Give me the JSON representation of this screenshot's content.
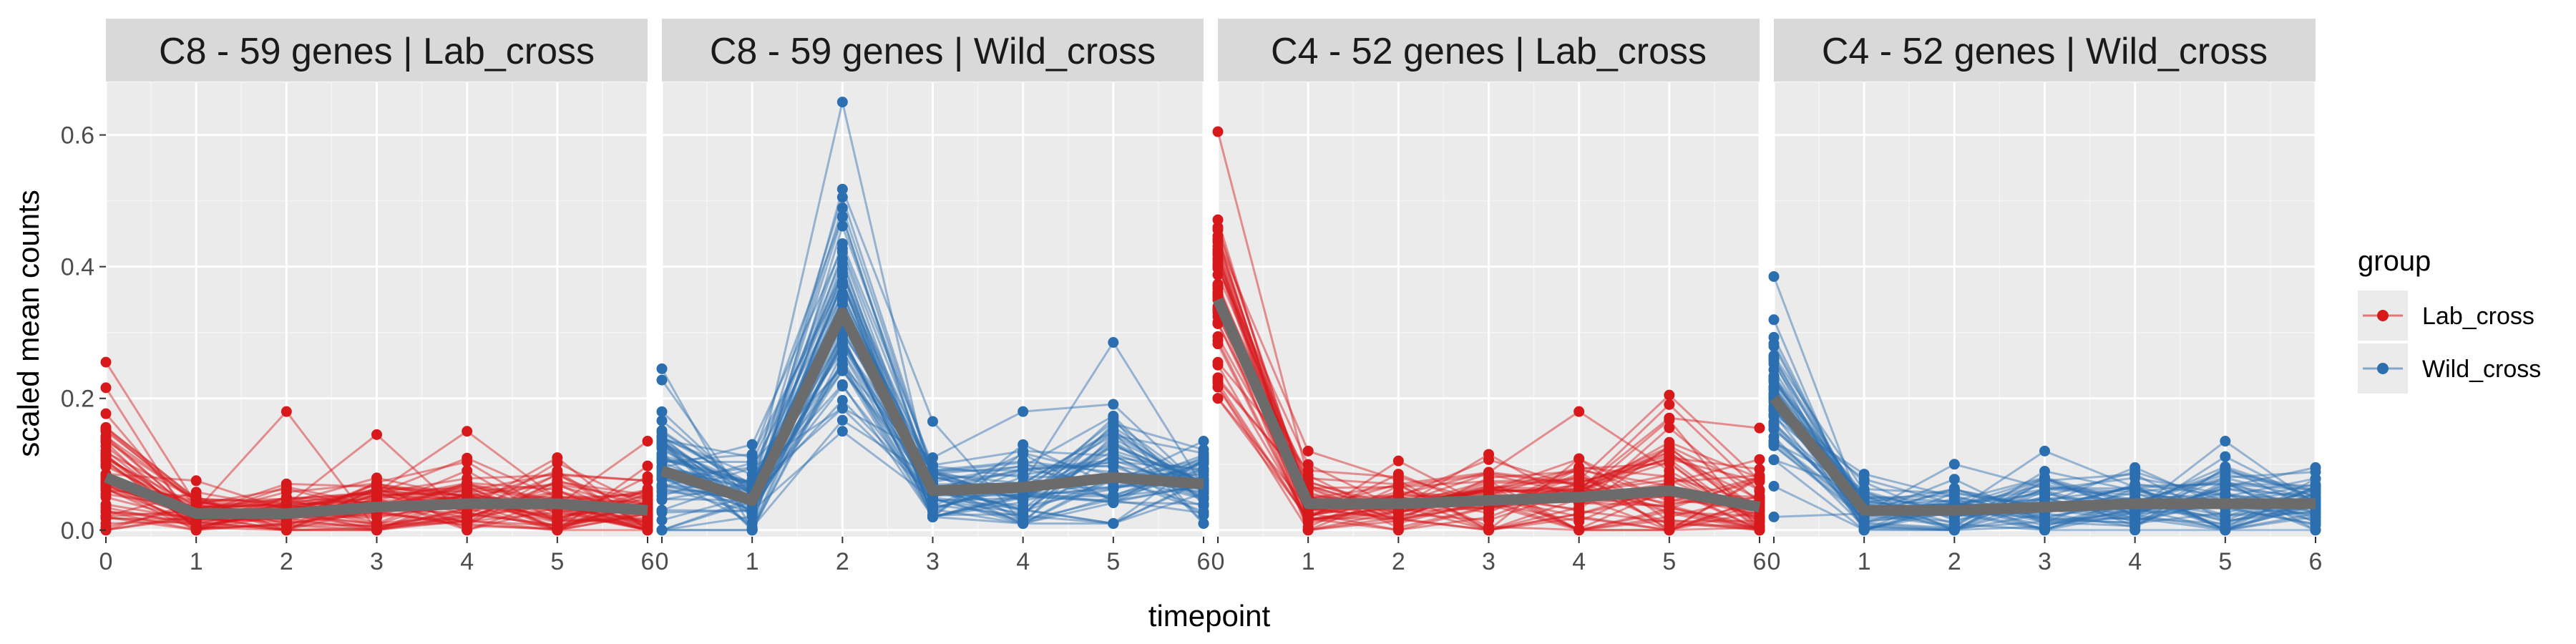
{
  "chart_data": {
    "type": "line",
    "x": [
      0,
      1,
      2,
      3,
      4,
      5,
      6
    ],
    "xlabel": "timepoint",
    "ylabel": "scaled mean counts",
    "ylim": [
      -0.01,
      0.68
    ],
    "yticks": [
      "0.0",
      "0.2",
      "0.4",
      "0.6"
    ],
    "ytick_values": [
      0.0,
      0.2,
      0.4,
      0.6
    ],
    "xticks": [
      "0",
      "1",
      "2",
      "3",
      "4",
      "5",
      "6"
    ],
    "grid": true,
    "legend": {
      "title": "group",
      "position": "right",
      "entries": [
        {
          "label": "Lab_cross",
          "color": "#d7191c"
        },
        {
          "label": "Wild_cross",
          "color": "#2c6fb0"
        }
      ]
    },
    "panels": [
      {
        "title": "C8 - 59 genes | Lab_cross",
        "group": "Lab_cross",
        "color": "#d7191c",
        "line_count": 59,
        "mean": [
          0.08,
          0.025,
          0.025,
          0.035,
          0.04,
          0.04,
          0.03
        ],
        "spread": [
          0.05,
          0.015,
          0.02,
          0.025,
          0.03,
          0.03,
          0.03
        ],
        "min": [
          0.0,
          0.0,
          0.0,
          0.0,
          0.0,
          0.0,
          0.0
        ],
        "max": [
          0.255,
          0.075,
          0.18,
          0.145,
          0.15,
          0.11,
          0.135
        ]
      },
      {
        "title": "C8 - 59 genes | Wild_cross",
        "group": "Wild_cross",
        "color": "#2c6fb0",
        "line_count": 59,
        "mean": [
          0.09,
          0.045,
          0.33,
          0.06,
          0.065,
          0.08,
          0.07
        ],
        "spread": [
          0.05,
          0.03,
          0.09,
          0.03,
          0.035,
          0.04,
          0.03
        ],
        "min": [
          0.0,
          0.0,
          0.15,
          0.02,
          0.01,
          0.01,
          0.01
        ],
        "max": [
          0.245,
          0.13,
          0.65,
          0.165,
          0.18,
          0.285,
          0.135
        ]
      },
      {
        "title": "C4 - 52 genes | Lab_cross",
        "group": "Lab_cross",
        "color": "#d7191c",
        "line_count": 52,
        "mean": [
          0.35,
          0.04,
          0.04,
          0.045,
          0.05,
          0.06,
          0.035
        ],
        "spread": [
          0.08,
          0.025,
          0.02,
          0.03,
          0.035,
          0.045,
          0.03
        ],
        "min": [
          0.2,
          0.0,
          0.0,
          0.0,
          0.0,
          0.0,
          0.0
        ],
        "max": [
          0.605,
          0.12,
          0.105,
          0.115,
          0.18,
          0.205,
          0.155
        ]
      },
      {
        "title": "C4 - 52 genes | Wild_cross",
        "group": "Wild_cross",
        "color": "#2c6fb0",
        "line_count": 52,
        "mean": [
          0.2,
          0.03,
          0.03,
          0.035,
          0.04,
          0.04,
          0.04
        ],
        "spread": [
          0.07,
          0.02,
          0.025,
          0.025,
          0.025,
          0.03,
          0.025
        ],
        "min": [
          0.02,
          0.0,
          0.0,
          0.0,
          0.0,
          0.0,
          0.0
        ],
        "max": [
          0.385,
          0.085,
          0.1,
          0.12,
          0.095,
          0.135,
          0.095
        ]
      }
    ],
    "mean_line_color": "#6b6b6b"
  }
}
